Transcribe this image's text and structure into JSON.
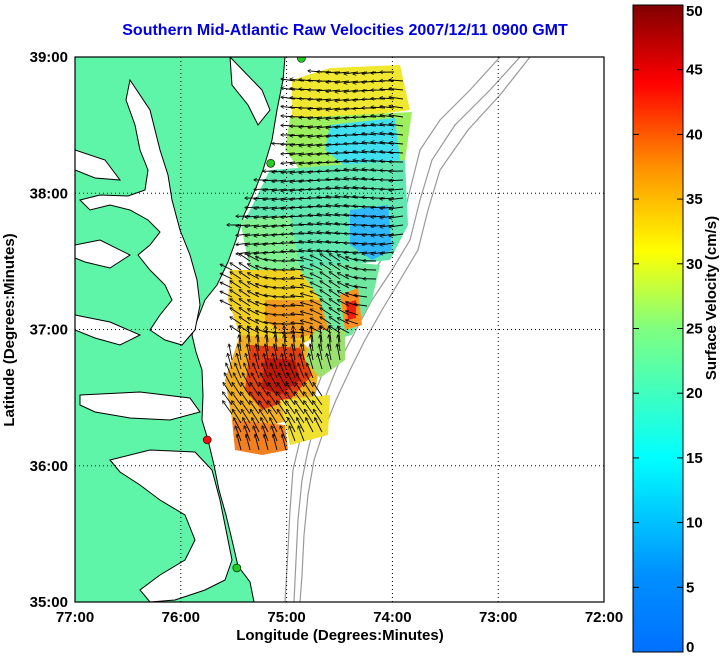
{
  "title": "Southern Mid-Atlantic Raw Velocities 2007/12/11 0900 GMT",
  "axes": {
    "xlabel": "Longitude (Degrees:Minutes)",
    "ylabel": "Latitude (Degrees:Minutes)",
    "x_ticks": [
      "77:00",
      "76:00",
      "75:00",
      "74:00",
      "73:00",
      "72:00"
    ],
    "y_ticks": [
      "39:00",
      "38:00",
      "37:00",
      "36:00",
      "35:00"
    ],
    "xlim": [
      -77,
      -72
    ],
    "ylim": [
      35,
      39
    ],
    "grid": "dotted"
  },
  "colorbar": {
    "label": "Surface Velocity (cm/s)",
    "ticks": [
      "50",
      "45",
      "40",
      "35",
      "30",
      "25",
      "20",
      "15",
      "10",
      "5",
      "0"
    ],
    "range": [
      0,
      50
    ],
    "colormap": "jet"
  },
  "colors": {
    "land": "#5ff5a8",
    "title": "#0000e0",
    "coastline": "#000000",
    "bathymetry": "#999999",
    "station_green": "#22cc22",
    "station_red": "#ee1111"
  },
  "stations": [
    {
      "name": "green-station-north",
      "lon": -74.86,
      "lat": 38.99,
      "color": "green"
    },
    {
      "name": "green-station-mid",
      "lon": -75.15,
      "lat": 38.22,
      "color": "green"
    },
    {
      "name": "red-station",
      "lon": -75.75,
      "lat": 36.19,
      "color": "red"
    },
    {
      "name": "green-station-south",
      "lon": -75.47,
      "lat": 35.25,
      "color": "green"
    }
  ]
}
